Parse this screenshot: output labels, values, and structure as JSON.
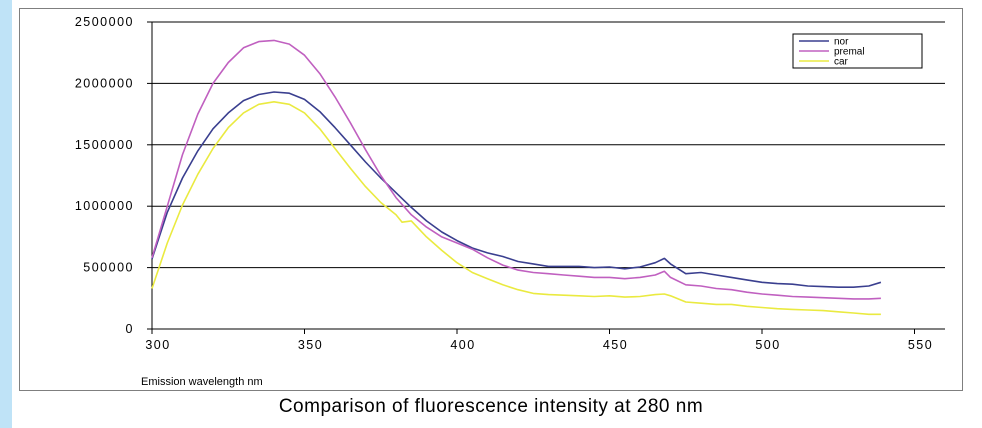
{
  "caption": "Comparison of fluorescence intensity at 280 nm",
  "chart_data": {
    "type": "line",
    "xlabel": "Emission wavelength nm",
    "ylabel": "",
    "xlim": [
      300,
      560
    ],
    "ylim": [
      0,
      2500000
    ],
    "x_ticks": [
      300,
      350,
      400,
      450,
      500,
      550
    ],
    "x_tick_labels": [
      "300",
      "350",
      "400",
      "450",
      "500",
      "550"
    ],
    "y_ticks": [
      0,
      500000,
      1000000,
      1500000,
      2000000,
      2500000
    ],
    "y_tick_labels": [
      "0",
      "500000",
      "1000000",
      "1500000",
      "2000000",
      "2500000"
    ],
    "grid": "horizontal",
    "legend_position": "top-right",
    "series": [
      {
        "name": "nor",
        "color": "#3a3f8f",
        "x": [
          300,
          305,
          310,
          315,
          320,
          325,
          330,
          335,
          340,
          345,
          350,
          355,
          360,
          365,
          370,
          375,
          380,
          385,
          390,
          395,
          400,
          405,
          410,
          415,
          420,
          425,
          430,
          435,
          440,
          445,
          450,
          455,
          460,
          465,
          468,
          470,
          475,
          480,
          485,
          490,
          495,
          500,
          505,
          510,
          515,
          520,
          525,
          530,
          535,
          539
        ],
        "y": [
          570000,
          950000,
          1230000,
          1450000,
          1630000,
          1760000,
          1860000,
          1910000,
          1930000,
          1920000,
          1870000,
          1770000,
          1640000,
          1500000,
          1360000,
          1230000,
          1110000,
          990000,
          880000,
          790000,
          720000,
          660000,
          620000,
          590000,
          550000,
          530000,
          510000,
          510000,
          510000,
          500000,
          505000,
          490000,
          505000,
          540000,
          575000,
          530000,
          450000,
          460000,
          440000,
          420000,
          400000,
          380000,
          370000,
          365000,
          350000,
          345000,
          340000,
          340000,
          350000,
          380000
        ]
      },
      {
        "name": "premal",
        "color": "#c060c0",
        "x": [
          300,
          305,
          310,
          315,
          320,
          325,
          330,
          335,
          340,
          345,
          350,
          355,
          360,
          365,
          370,
          375,
          380,
          385,
          390,
          395,
          400,
          405,
          410,
          415,
          420,
          425,
          430,
          435,
          440,
          445,
          450,
          455,
          460,
          465,
          468,
          470,
          475,
          480,
          485,
          490,
          495,
          500,
          505,
          510,
          515,
          520,
          525,
          530,
          535,
          539
        ],
        "y": [
          580000,
          1000000,
          1420000,
          1750000,
          2000000,
          2170000,
          2290000,
          2340000,
          2350000,
          2320000,
          2230000,
          2080000,
          1890000,
          1680000,
          1460000,
          1250000,
          1070000,
          930000,
          830000,
          750000,
          700000,
          650000,
          580000,
          520000,
          480000,
          460000,
          450000,
          440000,
          430000,
          420000,
          420000,
          410000,
          420000,
          440000,
          470000,
          420000,
          360000,
          350000,
          330000,
          320000,
          300000,
          285000,
          275000,
          265000,
          260000,
          255000,
          250000,
          245000,
          245000,
          250000
        ]
      },
      {
        "name": "car",
        "color": "#eaea40",
        "x": [
          300,
          305,
          310,
          315,
          320,
          325,
          330,
          335,
          340,
          345,
          350,
          355,
          360,
          365,
          370,
          375,
          380,
          382,
          385,
          390,
          395,
          400,
          405,
          410,
          415,
          420,
          425,
          430,
          435,
          440,
          445,
          450,
          455,
          460,
          465,
          468,
          470,
          475,
          480,
          485,
          490,
          495,
          500,
          505,
          510,
          515,
          520,
          525,
          530,
          535,
          539
        ],
        "y": [
          330000,
          700000,
          1010000,
          1260000,
          1470000,
          1640000,
          1760000,
          1830000,
          1850000,
          1830000,
          1760000,
          1630000,
          1470000,
          1310000,
          1160000,
          1030000,
          930000,
          870000,
          880000,
          750000,
          640000,
          540000,
          460000,
          410000,
          360000,
          320000,
          290000,
          280000,
          275000,
          270000,
          265000,
          270000,
          260000,
          265000,
          280000,
          285000,
          270000,
          220000,
          210000,
          200000,
          200000,
          185000,
          175000,
          165000,
          160000,
          155000,
          150000,
          140000,
          130000,
          120000,
          120000
        ]
      }
    ]
  }
}
